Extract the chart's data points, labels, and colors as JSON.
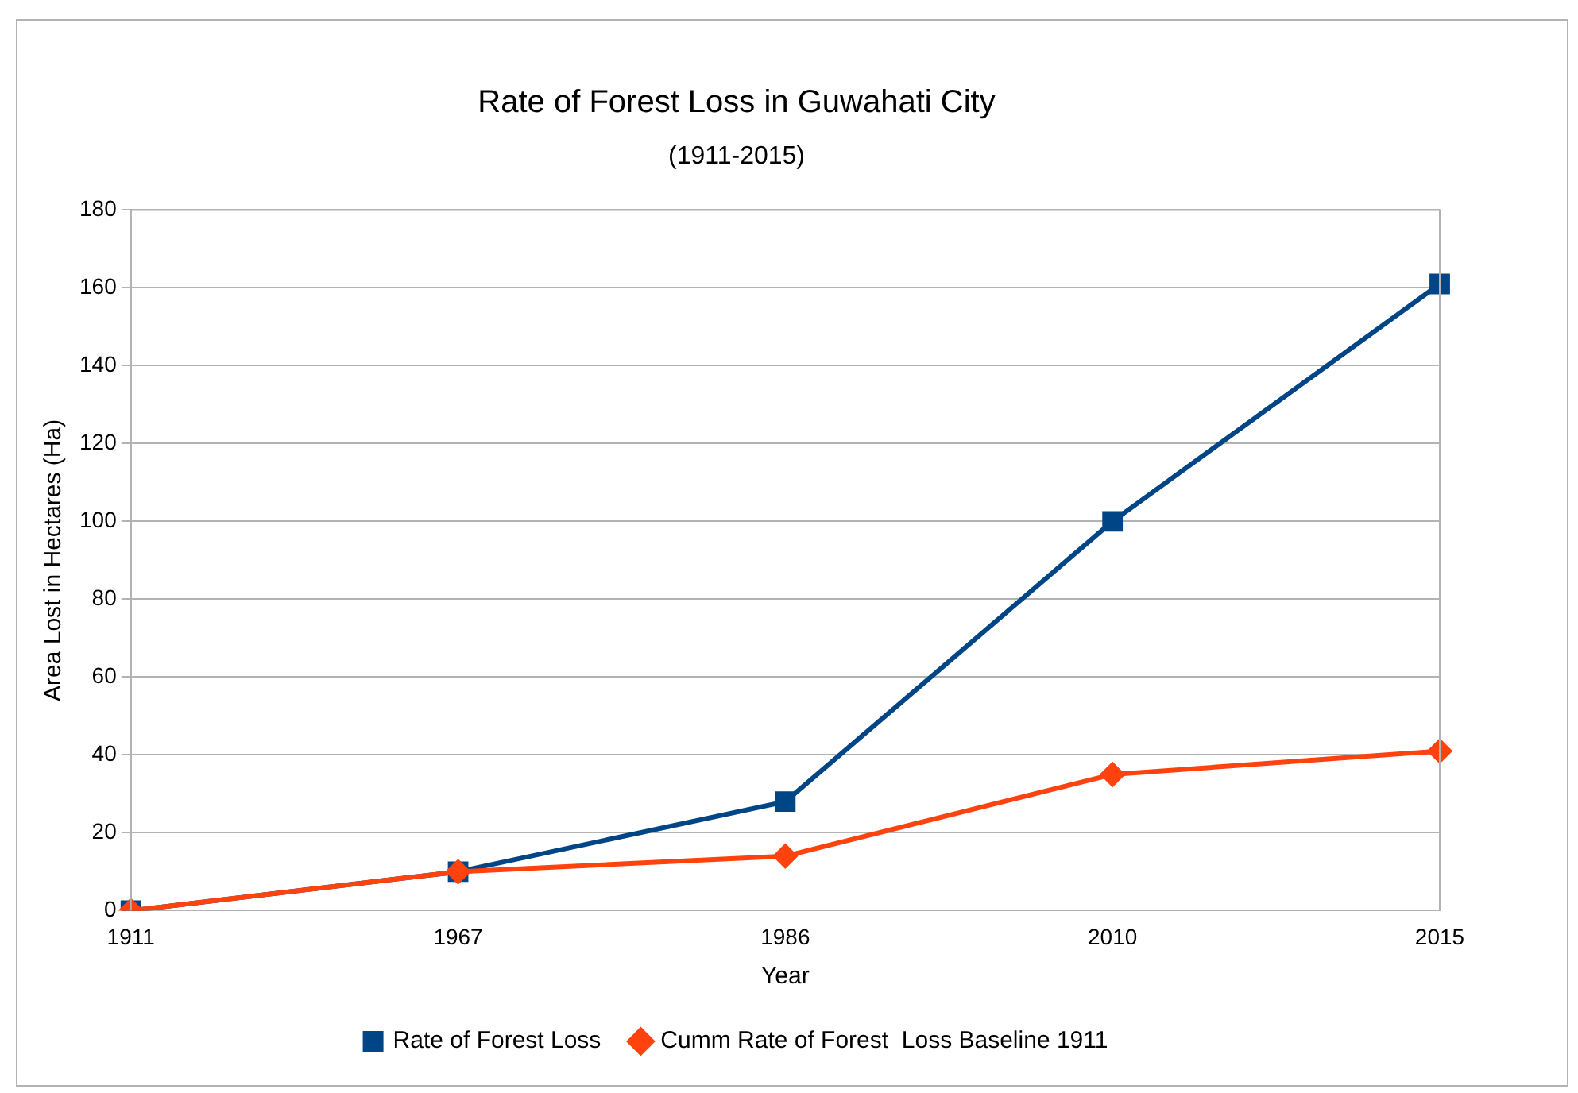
{
  "chart_data": {
    "type": "line",
    "title": "Rate of Forest Loss in Guwahati City",
    "subtitle": "(1911-2015)",
    "xlabel": "Year",
    "ylabel": "Area Lost in Hectares (Ha)",
    "categories": [
      "1911",
      "1967",
      "1986",
      "2010",
      "2015"
    ],
    "series": [
      {
        "name": "Rate of Forest Loss",
        "color": "#004586",
        "marker": "square",
        "values": [
          0,
          10,
          28,
          100,
          161
        ]
      },
      {
        "name": "Cumm Rate of Forest  Loss Baseline 1911",
        "color": "#ff420e",
        "marker": "diamond",
        "values": [
          0,
          10,
          14,
          35,
          41
        ]
      }
    ],
    "ylim": [
      0,
      180
    ],
    "yticks": [
      0,
      20,
      40,
      60,
      80,
      100,
      120,
      140,
      160,
      180
    ],
    "grid": "y",
    "legend": "bottom",
    "line_style": "solid"
  }
}
